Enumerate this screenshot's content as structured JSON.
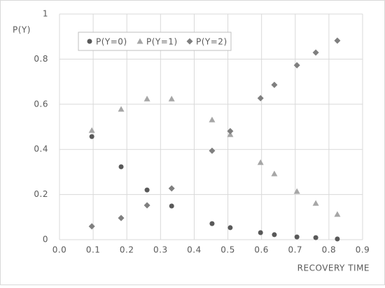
{
  "chart_data": {
    "type": "scatter",
    "y_label": "P(Y)",
    "x_label": "RECOVERY TIME",
    "x": [
      0.096,
      0.183,
      0.26,
      0.333,
      0.453,
      0.507,
      0.597,
      0.638,
      0.705,
      0.761,
      0.825
    ],
    "series": [
      {
        "name": "P(Y=0)",
        "color": "#595959",
        "marker": "circle",
        "values": [
          0.457,
          0.323,
          0.22,
          0.149,
          0.071,
          0.053,
          0.031,
          0.022,
          0.012,
          0.009,
          0.003
        ]
      },
      {
        "name": "P(Y=1)",
        "color": "#a6a6a6",
        "marker": "triangle",
        "values": [
          0.484,
          0.578,
          0.624,
          0.624,
          0.531,
          0.466,
          0.342,
          0.292,
          0.214,
          0.161,
          0.112
        ]
      },
      {
        "name": "P(Y=2)",
        "color": "#7f7f7f",
        "marker": "diamond",
        "values": [
          0.059,
          0.096,
          0.152,
          0.227,
          0.394,
          0.481,
          0.627,
          0.686,
          0.773,
          0.829,
          0.882
        ]
      }
    ],
    "xlim": [
      0,
      0.9
    ],
    "ylim": [
      0,
      1
    ],
    "xticks": [
      {
        "value": 0,
        "label": "0.0"
      },
      0.1,
      0.2,
      0.3,
      0.4,
      0.5,
      0.6,
      0.7,
      0.8,
      0.9
    ],
    "yticks": [
      0,
      0.2,
      0.4,
      0.6,
      0.8,
      1
    ],
    "grid": true,
    "legend": "top-left"
  }
}
